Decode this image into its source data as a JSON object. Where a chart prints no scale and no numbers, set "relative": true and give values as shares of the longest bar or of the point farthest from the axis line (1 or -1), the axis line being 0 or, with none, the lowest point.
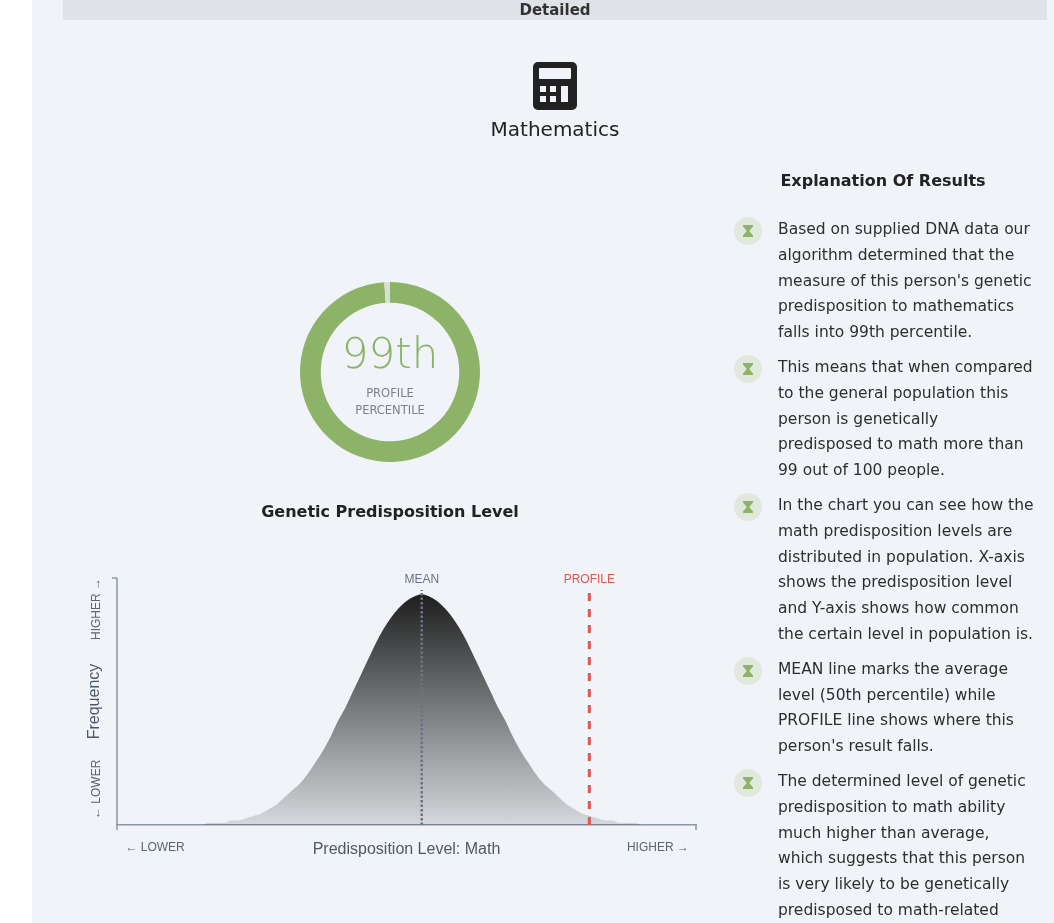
{
  "chart_data": [
    {
      "type": "other",
      "title": "Detailed"
    },
    {
      "type": "donut",
      "title": "Mathematics",
      "categories": [
        null,
        null
      ],
      "values": [
        99,
        1
      ],
      "colors": [
        "#8db368",
        "#d9dfd4"
      ],
      "annotations": [
        "99th",
        "PROFILE PERCENTILE"
      ]
    },
    {
      "type": "area",
      "title": "Genetic Predisposition Level",
      "xlabel": "Predisposition Level: Math",
      "ylabel": "Frequency",
      "relative": true,
      "categories": [
        null,
        null,
        null,
        null,
        null,
        "← LOWER",
        null,
        null,
        null,
        null,
        null,
        null,
        null,
        null,
        null,
        null,
        null,
        null,
        null,
        null,
        null,
        null,
        null,
        null,
        null,
        null,
        null,
        null,
        null,
        null,
        null,
        null,
        null,
        null,
        null,
        null,
        null,
        null,
        null,
        null,
        "MEAN",
        null,
        null,
        null,
        null,
        null,
        null,
        null,
        null,
        null,
        null,
        null,
        null,
        null,
        null,
        null,
        null,
        null,
        null,
        null,
        null,
        null,
        "PROFILE",
        null,
        null,
        null,
        null,
        null,
        null,
        null,
        null,
        "HIGHER →",
        null,
        null,
        null,
        null,
        null
      ],
      "series": [
        {
          "color": "#111111",
          "values": [
            0,
            0,
            0,
            0,
            0,
            0,
            0,
            0,
            0,
            0,
            0,
            0,
            0.01,
            0.01,
            0.01,
            0.02,
            0.02,
            0.03,
            0.04,
            0.05,
            0.07,
            0.09,
            0.12,
            0.15,
            0.18,
            0.22,
            0.27,
            0.32,
            0.38,
            0.45,
            0.51,
            0.58,
            0.65,
            0.72,
            0.79,
            0.85,
            0.9,
            0.94,
            0.97,
            0.99,
            1,
            0.99,
            0.97,
            0.94,
            0.9,
            0.85,
            0.79,
            0.72,
            0.65,
            0.58,
            0.51,
            0.45,
            0.38,
            0.32,
            0.27,
            0.22,
            0.18,
            0.15,
            0.12,
            0.09,
            0.07,
            0.05,
            0.04,
            0.03,
            0.02,
            0.02,
            0.01,
            0.01,
            0.01,
            0,
            0,
            0,
            0,
            0,
            0,
            0,
            0
          ]
        }
      ],
      "ref_lines": [
        {
          "axis": "x",
          "value": "MEAN",
          "color": "#6b7480",
          "line_style": "dotted"
        },
        {
          "axis": "x",
          "value": "PROFILE",
          "color": "#e0584e",
          "line_style": "dashed"
        }
      ],
      "annotations": [
        "← LOWER",
        "HIGHER →"
      ]
    },
    {
      "type": "other",
      "title": "Explanation Of Results",
      "annotations": [
        "Based on supplied DNA data our algorithm determined that the measure of this person's genetic predisposition to mathematics falls into 99th percentile.",
        "This means that when compared to the general population this person is genetically predisposed to math more than 99 out of 100 people.",
        "In the chart you can see how the math predisposition levels are distributed in population. X-axis shows the predisposition level and Y-axis shows how common the certain level in population is.",
        "MEAN line marks the average level (50th percentile) while PROFILE line shows where this person's result falls.",
        "The determined level of genetic predisposition to math ability much higher than average, which suggests that this person is very likely to be genetically predisposed to math-related"
      ]
    }
  ]
}
